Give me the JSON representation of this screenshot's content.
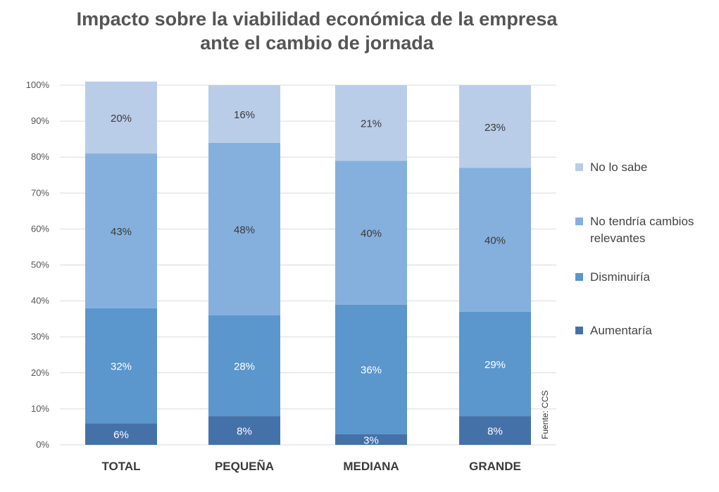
{
  "chart_data": {
    "type": "bar",
    "stacked": true,
    "title_lines": [
      "Impacto sobre la viabilidad económica de la empresa",
      "ante el cambio de jornada"
    ],
    "categories": [
      "TOTAL",
      "PEQUEÑA",
      "MEDIANA",
      "GRANDE"
    ],
    "series": [
      {
        "name": "Aumentaría",
        "values": [
          6,
          8,
          3,
          8
        ],
        "labels": [
          "6%",
          "8%",
          "3%",
          "8%"
        ],
        "color": "#4472a8",
        "label_color": "#ffffff"
      },
      {
        "name": "Disminuiría",
        "values": [
          32,
          28,
          36,
          29
        ],
        "labels": [
          "32%",
          "28%",
          "36%",
          "29%"
        ],
        "color": "#5b96cc",
        "label_color": "#ffffff"
      },
      {
        "name": "No tendría cambios relevantes",
        "legend_lines": [
          "No tendría cambios",
          "relevantes"
        ],
        "values": [
          43,
          48,
          40,
          40
        ],
        "labels": [
          "43%",
          "48%",
          "40%",
          "40%"
        ],
        "color": "#85b0dd",
        "label_color": "#3a3a3a"
      },
      {
        "name": "No lo sabe",
        "values": [
          20,
          16,
          21,
          23
        ],
        "labels": [
          "20%",
          "16%",
          "21%",
          "23%"
        ],
        "color": "#b9cde9",
        "label_color": "#3a3a3a"
      }
    ],
    "ylim": [
      0,
      100
    ],
    "y_ticks": [
      "0%",
      "10%",
      "20%",
      "30%",
      "40%",
      "50%",
      "60%",
      "70%",
      "80%",
      "90%",
      "100%"
    ],
    "grid": true,
    "legend_position": "right",
    "source": "Fuente: CCS"
  }
}
